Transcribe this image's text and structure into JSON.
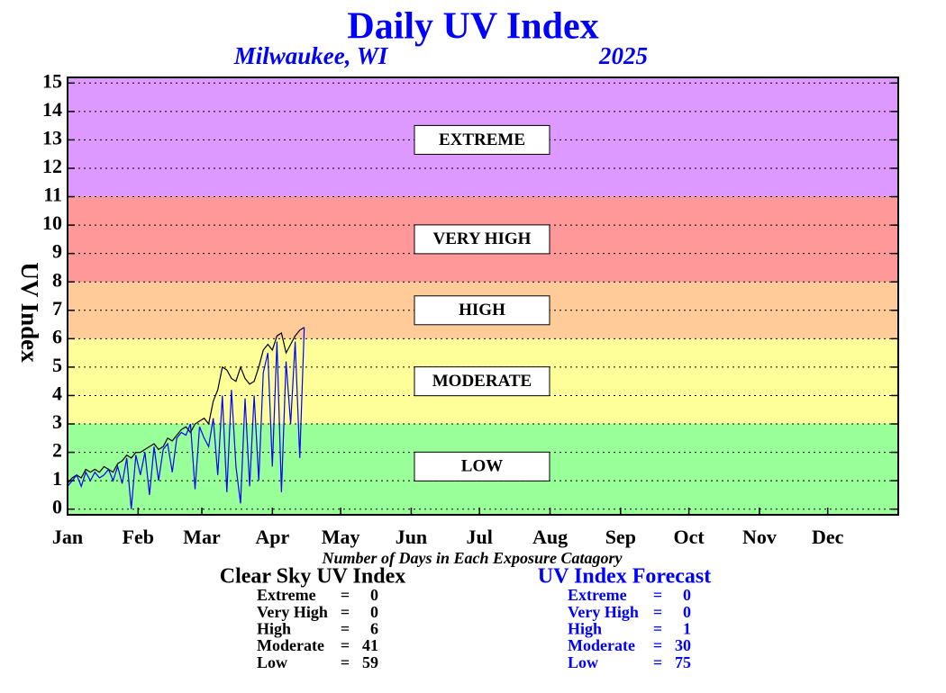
{
  "chart_data": {
    "type": "line",
    "title": "Daily UV Index",
    "location": "Milwaukee, WI",
    "year": "2025",
    "ylabel": "UV Index",
    "footer": "Number of Days in Each Exposure Catagory",
    "xlim": [
      1,
      366
    ],
    "xticks": [
      {
        "value": 1,
        "label": "Jan"
      },
      {
        "value": 32,
        "label": "Feb"
      },
      {
        "value": 60,
        "label": "Mar"
      },
      {
        "value": 91,
        "label": "Apr"
      },
      {
        "value": 121,
        "label": "May"
      },
      {
        "value": 152,
        "label": "Jun"
      },
      {
        "value": 182,
        "label": "Jul"
      },
      {
        "value": 213,
        "label": "Aug"
      },
      {
        "value": 244,
        "label": "Sep"
      },
      {
        "value": 274,
        "label": "Oct"
      },
      {
        "value": 305,
        "label": "Nov"
      },
      {
        "value": 335,
        "label": "Dec"
      }
    ],
    "ylim": [
      -0.2,
      15.2
    ],
    "yticks": [
      0,
      1,
      2,
      3,
      4,
      5,
      6,
      7,
      8,
      9,
      10,
      11,
      12,
      13,
      14,
      15
    ],
    "grid": true,
    "bands": [
      {
        "label": "LOW",
        "from": 0,
        "to": 3,
        "color": "#99ff99"
      },
      {
        "label": "MODERATE",
        "from": 3,
        "to": 6,
        "color": "#ffff99"
      },
      {
        "label": "HIGH",
        "from": 6,
        "to": 8,
        "color": "#ffcc99"
      },
      {
        "label": "VERY HIGH",
        "from": 8,
        "to": 11,
        "color": "#ff9999"
      },
      {
        "label": "EXTREME",
        "from": 11,
        "to": 15,
        "color": "#dd99ff"
      }
    ],
    "x": [
      1,
      3,
      5,
      7,
      9,
      11,
      13,
      15,
      17,
      19,
      21,
      23,
      25,
      27,
      29,
      31,
      33,
      35,
      37,
      39,
      41,
      43,
      45,
      47,
      49,
      51,
      53,
      55,
      57,
      59,
      61,
      63,
      65,
      67,
      69,
      71,
      73,
      75,
      77,
      79,
      81,
      83,
      85,
      87,
      89,
      91,
      93,
      95,
      97,
      99,
      101,
      103,
      105
    ],
    "series": [
      {
        "name": "Clear Sky UV Index",
        "color": "#000000",
        "values": [
          0.9,
          1.1,
          1.2,
          1.1,
          1.4,
          1.3,
          1.4,
          1.3,
          1.5,
          1.4,
          1.3,
          1.6,
          1.7,
          1.9,
          1.8,
          2.0,
          2.0,
          2.1,
          2.2,
          2.3,
          2.1,
          2.2,
          2.5,
          2.4,
          2.6,
          2.8,
          2.9,
          2.7,
          3.0,
          3.1,
          3.2,
          3.0,
          3.8,
          4.2,
          5.0,
          4.9,
          4.6,
          4.5,
          5.0,
          4.6,
          4.4,
          4.5,
          5.0,
          5.6,
          5.8,
          5.6,
          6.1,
          6.2,
          5.5,
          5.8,
          6.1,
          6.3,
          6.4
        ],
        "summary": [
          [
            "Extreme",
            "=",
            0
          ],
          [
            "Very High",
            "=",
            0
          ],
          [
            "High",
            "=",
            6
          ],
          [
            "Moderate",
            "=",
            41
          ],
          [
            "Low",
            "=",
            59
          ]
        ]
      },
      {
        "name": "UV Index Forecast",
        "color": "#0000ff",
        "values": [
          0.8,
          1.0,
          1.2,
          0.8,
          1.3,
          1.0,
          1.3,
          1.1,
          1.2,
          1.4,
          1.0,
          1.5,
          0.9,
          1.8,
          0.0,
          1.9,
          1.2,
          2.0,
          0.5,
          2.2,
          1.0,
          2.1,
          2.3,
          1.3,
          2.5,
          2.7,
          2.6,
          3.0,
          0.7,
          2.9,
          2.5,
          2.2,
          3.2,
          1.2,
          4.0,
          0.6,
          4.2,
          1.5,
          0.2,
          3.9,
          0.8,
          4.0,
          1.0,
          4.8,
          5.5,
          1.5,
          5.9,
          0.6,
          5.2,
          3.0,
          5.9,
          1.8,
          6.4
        ],
        "summary": [
          [
            "Extreme",
            "=",
            0
          ],
          [
            "Very High",
            "=",
            0
          ],
          [
            "High",
            "=",
            1
          ],
          [
            "Moderate",
            "=",
            30
          ],
          [
            "Low",
            "=",
            75
          ]
        ]
      }
    ]
  }
}
